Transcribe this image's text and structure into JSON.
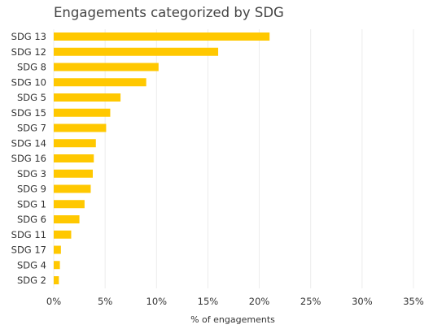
{
  "chart_data": {
    "type": "bar",
    "orientation": "horizontal",
    "title": "Engagements categorized by SDG",
    "xlabel": "% of engagements",
    "ylabel": "",
    "xlim": [
      0,
      35
    ],
    "x_ticks": [
      "0%",
      "5%",
      "10%",
      "15%",
      "20%",
      "25%",
      "30%",
      "35%"
    ],
    "grid": true,
    "legend": "none",
    "bar_color": "#FFC800",
    "categories": [
      "SDG 13",
      "SDG 12",
      "SDG 8",
      "SDG 10",
      "SDG 5",
      "SDG 15",
      "SDG 7",
      "SDG 14",
      "SDG 16",
      "SDG 3",
      "SDG 9",
      "SDG 1",
      "SDG 6",
      "SDG 11",
      "SDG 17",
      "SDG 4",
      "SDG 2"
    ],
    "values": [
      21.0,
      16.0,
      10.2,
      9.0,
      6.5,
      5.5,
      5.1,
      4.1,
      3.9,
      3.8,
      3.6,
      3.0,
      2.5,
      1.7,
      0.7,
      0.6,
      0.5
    ]
  }
}
